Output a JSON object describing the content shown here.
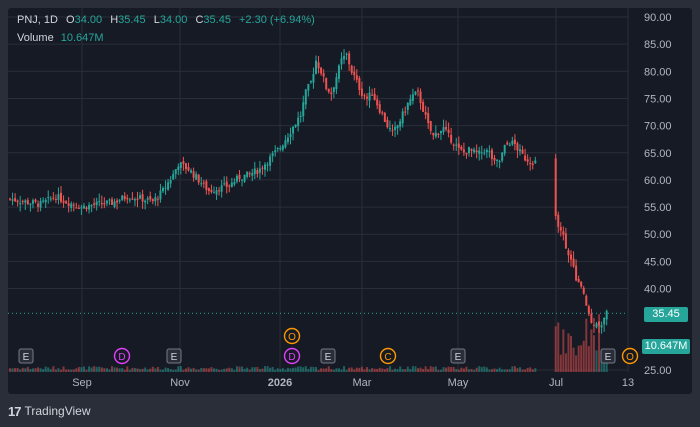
{
  "legend": {
    "symbol": "PNJ",
    "interval": "1D",
    "open_label": "O",
    "open": "34.00",
    "high_label": "H",
    "high": "35.45",
    "low_label": "L",
    "low": "34.00",
    "close_label": "C",
    "close": "35.45",
    "change": "+2.30 (+6.94%)",
    "volume_label": "Volume",
    "volume": "10.647M"
  },
  "price_tag": "35.45",
  "volume_tag": "10.647M",
  "footer": {
    "logo": "17",
    "brand": "TradingView"
  },
  "colors": {
    "up": "#26a69a",
    "down": "#ef5350",
    "bg": "#161a25",
    "grid": "#2a2e39",
    "axis_text": "#b2b5be"
  },
  "chart_data": {
    "type": "candlestick",
    "y_axis": {
      "ticks": [
        90,
        85,
        80,
        75,
        70,
        65,
        60,
        55,
        50,
        45,
        40,
        35,
        25
      ],
      "tick_labels": [
        "90.00",
        "85.00",
        "80.00",
        "75.00",
        "70.00",
        "65.00",
        "60.00",
        "55.00",
        "50.00",
        "45.00",
        "40.00",
        "",
        "25.00"
      ],
      "range": [
        25,
        90
      ]
    },
    "x_axis": {
      "labels": [
        "Sep",
        "Nov",
        "2026",
        "Mar",
        "May",
        "Jul",
        "13"
      ]
    },
    "events": [
      {
        "label": "E",
        "kind": "earnings"
      },
      {
        "label": "D",
        "kind": "dividend"
      },
      {
        "label": "E",
        "kind": "earnings"
      },
      {
        "label": "O",
        "kind": "other"
      },
      {
        "label": "D",
        "kind": "dividend"
      },
      {
        "label": "E",
        "kind": "earnings"
      },
      {
        "label": "C",
        "kind": "corporate"
      },
      {
        "label": "E",
        "kind": "earnings"
      },
      {
        "label": "E",
        "kind": "earnings"
      },
      {
        "label": "O",
        "kind": "other"
      }
    ],
    "price_path": [
      [
        0,
        56.5
      ],
      [
        6,
        56
      ],
      [
        12,
        55.5
      ],
      [
        18,
        57
      ],
      [
        22,
        56
      ],
      [
        28,
        55
      ],
      [
        34,
        55.5
      ],
      [
        40,
        55.8
      ],
      [
        46,
        57
      ],
      [
        52,
        56.5
      ],
      [
        56,
        56
      ],
      [
        60,
        58
      ],
      [
        64,
        61
      ],
      [
        66,
        63
      ],
      [
        70,
        62
      ],
      [
        74,
        60
      ],
      [
        78,
        58
      ],
      [
        82,
        58.5
      ],
      [
        86,
        59
      ],
      [
        90,
        60.5
      ],
      [
        94,
        61
      ],
      [
        98,
        62
      ],
      [
        102,
        64
      ],
      [
        106,
        66
      ],
      [
        110,
        69
      ],
      [
        114,
        72
      ],
      [
        116,
        76
      ],
      [
        118,
        78
      ],
      [
        120,
        82
      ],
      [
        122,
        80
      ],
      [
        124,
        77
      ],
      [
        126,
        76
      ],
      [
        128,
        79
      ],
      [
        130,
        82
      ],
      [
        132,
        83
      ],
      [
        134,
        80
      ],
      [
        136,
        78
      ],
      [
        138,
        76
      ],
      [
        140,
        75
      ],
      [
        142,
        76
      ],
      [
        144,
        74
      ],
      [
        146,
        72
      ],
      [
        148,
        70
      ],
      [
        150,
        68.5
      ],
      [
        152,
        70
      ],
      [
        154,
        72
      ],
      [
        156,
        74
      ],
      [
        158,
        75.5
      ],
      [
        160,
        76
      ],
      [
        162,
        73
      ],
      [
        164,
        70
      ],
      [
        166,
        68
      ],
      [
        168,
        69
      ],
      [
        170,
        69.5
      ],
      [
        172,
        68
      ],
      [
        174,
        67
      ],
      [
        176,
        65.5
      ],
      [
        178,
        65
      ],
      [
        180,
        65.5
      ],
      [
        182,
        65
      ],
      [
        184,
        64.8
      ],
      [
        186,
        65.5
      ],
      [
        188,
        65
      ],
      [
        190,
        63
      ],
      [
        192,
        63.5
      ],
      [
        194,
        66
      ],
      [
        196,
        67
      ],
      [
        198,
        66.5
      ],
      [
        200,
        65
      ],
      [
        202,
        64
      ],
      [
        204,
        63.5
      ],
      [
        206,
        63.3
      ]
    ],
    "crash_path": [
      [
        214,
        53
      ],
      [
        216,
        51
      ],
      [
        218,
        48
      ],
      [
        220,
        45
      ],
      [
        222,
        42
      ],
      [
        224,
        40
      ],
      [
        226,
        37
      ],
      [
        228,
        33.5
      ],
      [
        230,
        34
      ],
      [
        232,
        33
      ],
      [
        234,
        35.45
      ]
    ]
  }
}
